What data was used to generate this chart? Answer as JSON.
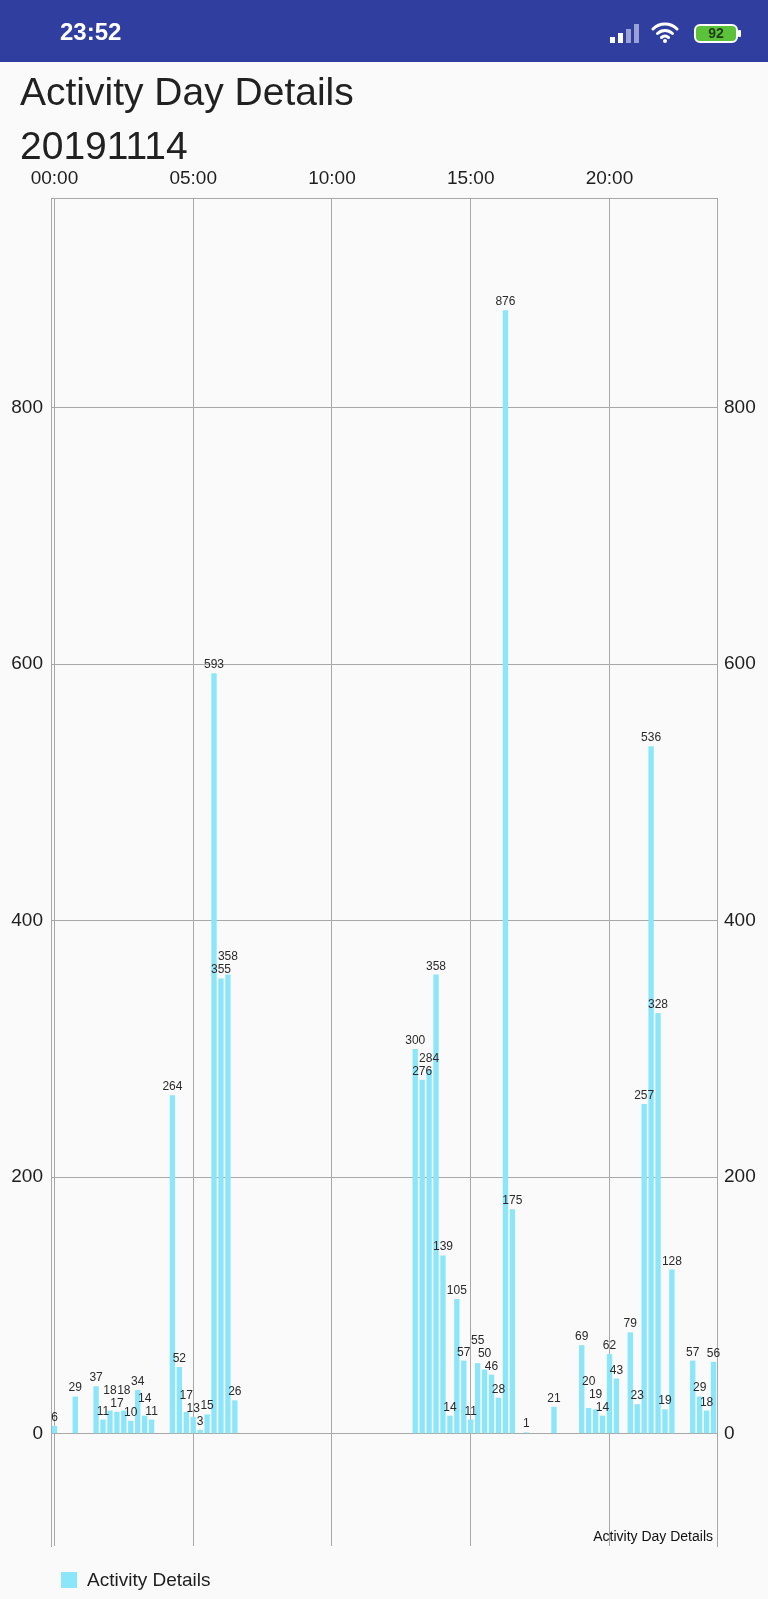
{
  "chart_data": {
    "type": "bar",
    "title": "Activity Day Details",
    "subtitle": "20191114",
    "x": [
      0,
      0.75,
      1.5,
      1.75,
      2,
      2.25,
      2.5,
      2.75,
      3,
      3.25,
      3.5,
      4.25,
      4.5,
      4.75,
      5,
      5.25,
      5.5,
      5.75,
      6,
      6.25,
      6.5,
      13,
      13.25,
      13.5,
      13.75,
      14,
      14.25,
      14.5,
      14.75,
      15,
      15.25,
      15.5,
      15.75,
      16,
      16.25,
      16.5,
      17,
      18,
      19,
      19.25,
      19.5,
      19.75,
      20,
      20.25,
      20.75,
      21,
      21.25,
      21.5,
      21.75,
      22,
      22.25,
      23,
      23.25,
      23.5,
      23.75
    ],
    "series": [
      {
        "name": "Activity Details",
        "color": "#8ce6fa",
        "values": [
          6,
          29,
          37,
          11,
          18,
          17,
          18,
          10,
          34,
          14,
          11,
          264,
          52,
          17,
          13,
          3,
          15,
          593,
          355,
          358,
          26,
          300,
          276,
          284,
          358,
          139,
          14,
          105,
          57,
          11,
          55,
          50,
          46,
          28,
          876,
          175,
          1,
          21,
          69,
          20,
          19,
          14,
          62,
          43,
          79,
          23,
          257,
          536,
          328,
          19,
          128,
          57,
          29,
          18,
          56
        ]
      }
    ],
    "xlim": [
      -0.125,
      23.875
    ],
    "xticks": [
      {
        "value": 0,
        "label": "00:00"
      },
      {
        "value": 5,
        "label": "05:00"
      },
      {
        "value": 10,
        "label": "10:00"
      },
      {
        "value": 15,
        "label": "15:00"
      },
      {
        "value": 20,
        "label": "20:00"
      }
    ],
    "ylim": [
      -87.6,
      963.6
    ],
    "yticks": [
      0,
      200,
      400,
      600,
      800
    ],
    "y2lim": [
      -87.6,
      963.6
    ],
    "y2ticks": [
      0,
      200,
      400,
      600,
      800
    ],
    "grid": true,
    "legend": "bottom left",
    "data_labels": true,
    "annotations": [
      "23:52",
      "92",
      "Activity Day Details"
    ]
  }
}
